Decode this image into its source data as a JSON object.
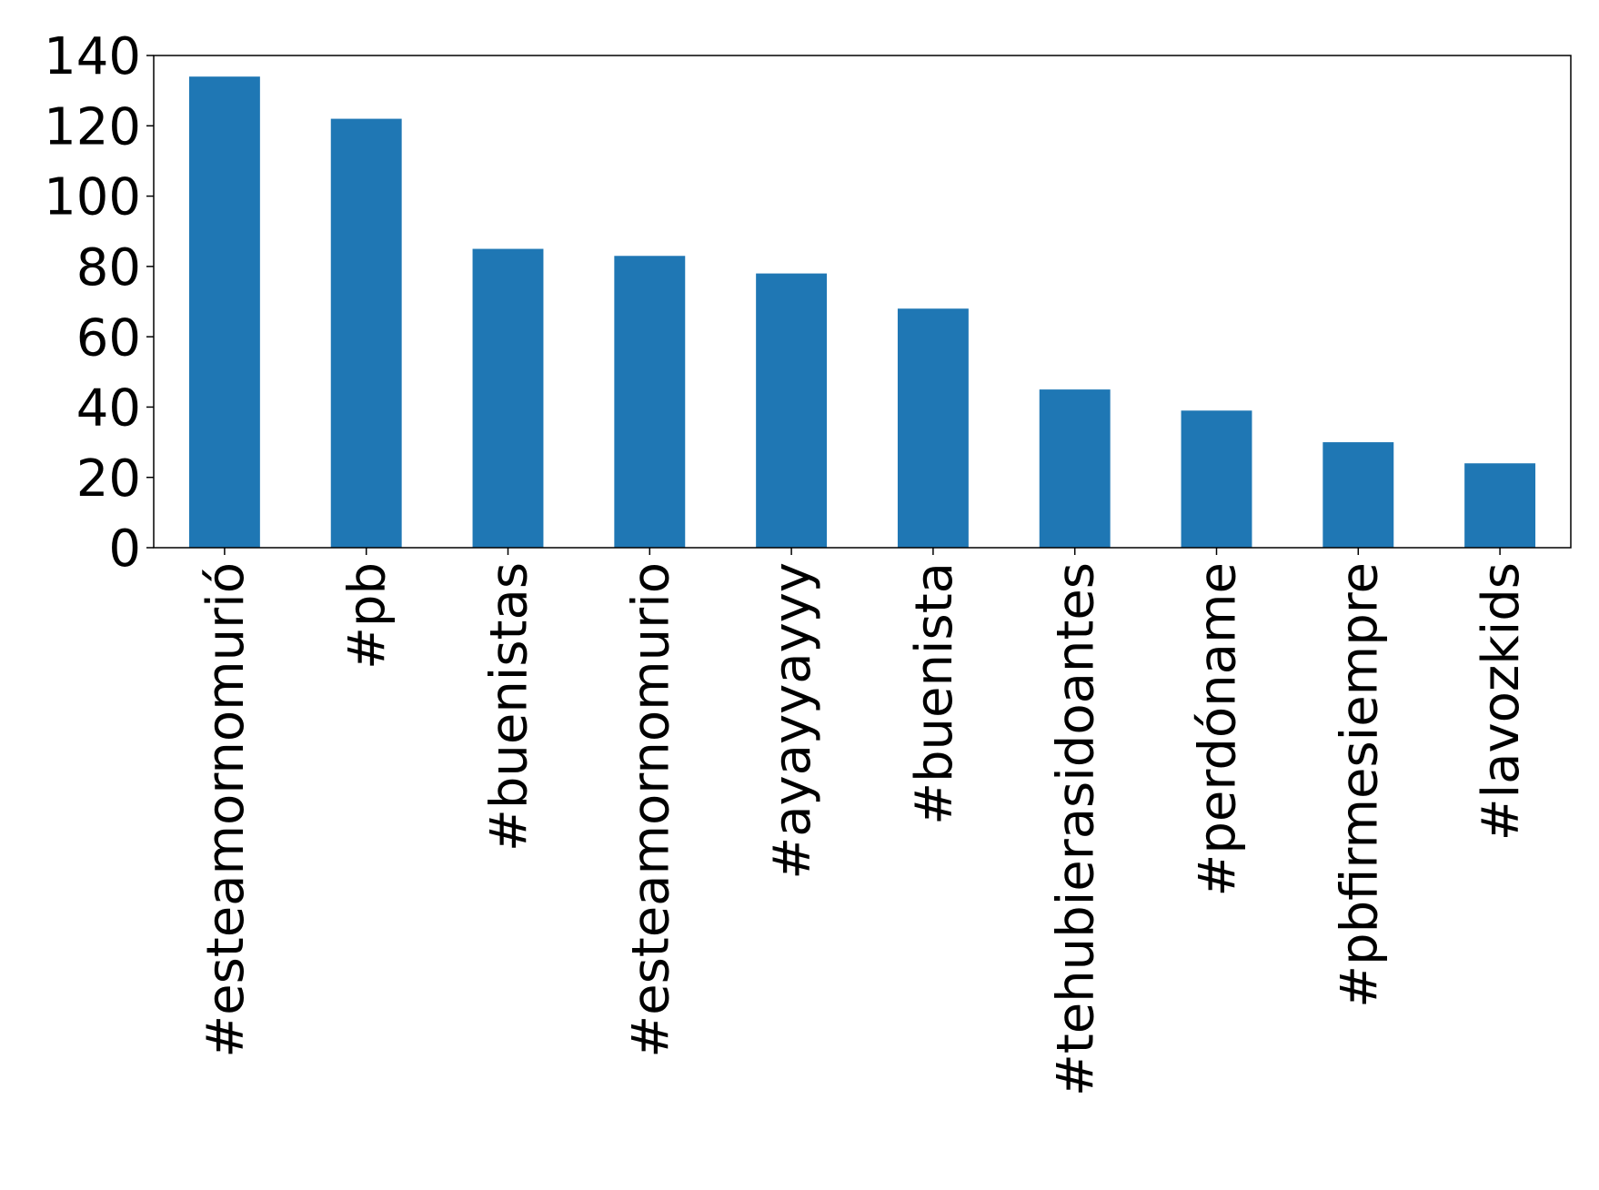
{
  "chart_data": {
    "type": "bar",
    "title": "",
    "xlabel": "",
    "ylabel": "",
    "categories": [
      "#esteamornomurió",
      "#pb",
      "#buenistas",
      "#esteamornomurio",
      "#ayayyayyy",
      "#buenista",
      "#tehubierasidoantes",
      "#perdóname",
      "#pbfirmesiempre",
      "#lavozkids"
    ],
    "values": [
      134,
      122,
      85,
      83,
      78,
      68,
      45,
      39,
      30,
      24
    ],
    "ylim": [
      0,
      140
    ],
    "yticks": [
      0,
      20,
      40,
      60,
      80,
      100,
      120,
      140
    ],
    "grid": false,
    "legend": "none",
    "colors": {
      "bar": "#1f77b4",
      "axis": "#000000",
      "background": "#ffffff"
    }
  }
}
